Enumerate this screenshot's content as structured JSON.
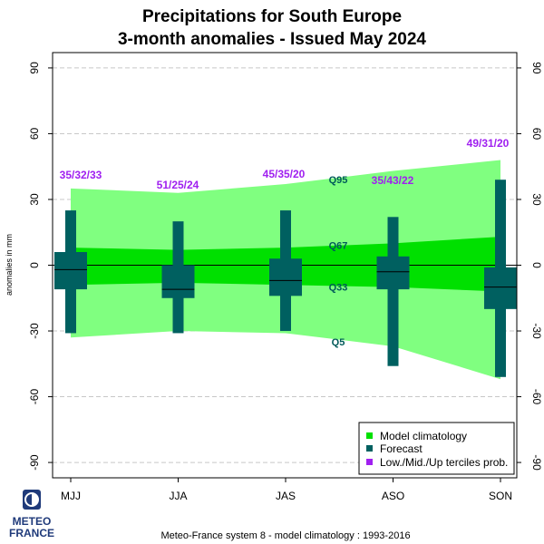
{
  "title_line1": "Precipitations  for  South Europe",
  "title_line2": "3-month anomalies    -    Issued May 2024",
  "footer": "Meteo-France system 8  -  model climatology : 1993-2016",
  "logo": {
    "line1": "METEO",
    "line2": "FRANCE"
  },
  "colors": {
    "q5_q95_band": "#80ff80",
    "q33_q67_band": "#00e000",
    "forecast": "#006060",
    "tercile_text": "#a020f0",
    "quantile_text": "#005a5a"
  },
  "chart_data": {
    "type": "box",
    "ylabel": "anomalies in mm",
    "ylim": [
      -97,
      97
    ],
    "yticks": [
      -90,
      -60,
      -30,
      0,
      30,
      60,
      90
    ],
    "grid": "horizontal dashed",
    "categories": [
      "MJJ",
      "JJA",
      "JAS",
      "ASO",
      "SON"
    ],
    "climatology": {
      "q5": [
        -33,
        -30,
        -31,
        -37,
        -52
      ],
      "q33": [
        -9,
        -8,
        -9,
        -10,
        -12
      ],
      "q67": [
        8,
        7,
        8,
        10,
        13
      ],
      "q95": [
        35,
        33,
        37,
        43,
        48
      ]
    },
    "quantile_labels": [
      {
        "text": "Q95",
        "y": 39
      },
      {
        "text": "Q67",
        "y": 9
      },
      {
        "text": "Q33",
        "y": -10
      },
      {
        "text": "Q5",
        "y": -35
      }
    ],
    "forecast": [
      {
        "min": -31,
        "lower": -11,
        "median": -2,
        "upper": 6,
        "max": 25
      },
      {
        "min": -31,
        "lower": -15,
        "median": -11,
        "upper": 0,
        "max": 20
      },
      {
        "min": -30,
        "lower": -14,
        "median": -7,
        "upper": 3,
        "max": 25
      },
      {
        "min": -46,
        "lower": -11,
        "median": -3,
        "upper": 4,
        "max": 22
      },
      {
        "min": -51,
        "lower": -20,
        "median": -10,
        "upper": -1,
        "max": 39
      }
    ],
    "tercile_probabilities": [
      "35/32/33",
      "51/25/24",
      "45/35/20",
      "35/43/22",
      "49/31/20"
    ],
    "legend": {
      "position": "bottom-right",
      "entries": [
        "Model climatology",
        "Forecast",
        "Low./Mid./Up terciles prob."
      ]
    }
  }
}
